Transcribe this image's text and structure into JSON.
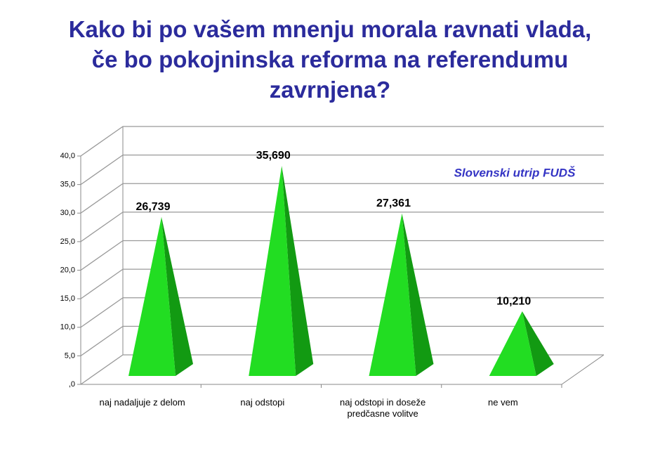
{
  "chart_data": {
    "type": "pyramid",
    "title": "Kako bi po vašem mnenju morala ravnati vlada,\nče bo pokojninska reforma na referendumu\nzavrnjena?",
    "annotation": "Slovenski utrip FUDŠ",
    "categories": [
      "naj nadaljuje z delom",
      "naj odstopi",
      "naj odstopi in doseže predčasne volitve",
      "ne vem"
    ],
    "values": [
      26.739,
      35.69,
      27.361,
      10.21
    ],
    "value_labels": [
      "26,739",
      "35,690",
      "27,361",
      "10,210"
    ],
    "color": "#22dd22",
    "ylim": [
      0,
      40
    ],
    "yticks": [
      {
        "value": 0,
        "label": ",0"
      },
      {
        "value": 5,
        "label": "5,0"
      },
      {
        "value": 10,
        "label": "10,0"
      },
      {
        "value": 15,
        "label": "15,0"
      },
      {
        "value": 20,
        "label": "20,0"
      },
      {
        "value": 25,
        "label": "25,0"
      },
      {
        "value": 30,
        "label": "30,0"
      },
      {
        "value": 35,
        "label": "35,0"
      },
      {
        "value": 40,
        "label": "40,0"
      }
    ],
    "grid": true
  }
}
